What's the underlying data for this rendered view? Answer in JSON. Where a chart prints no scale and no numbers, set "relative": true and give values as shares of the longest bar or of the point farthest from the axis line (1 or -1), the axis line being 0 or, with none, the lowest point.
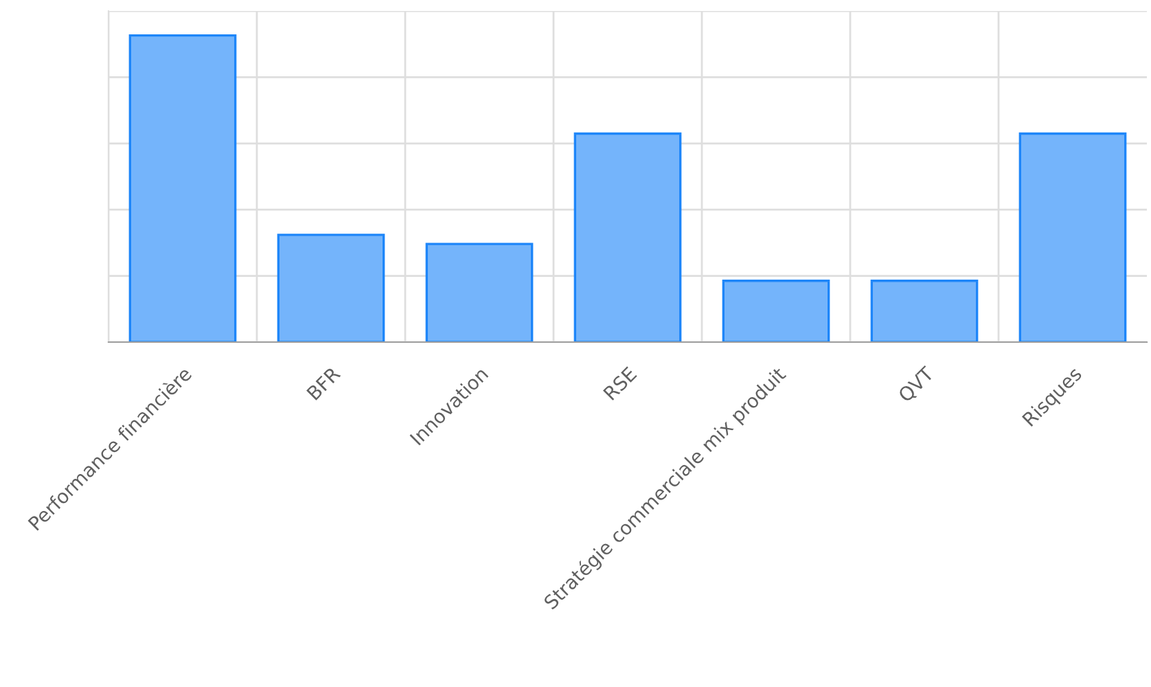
{
  "chart_data": {
    "type": "bar",
    "categories": [
      "Performance financière",
      "BFR",
      "Innovation",
      "RSE",
      "Stratégie commerciale mix produit",
      "QVT",
      "Risques"
    ],
    "values": [
      1,
      0.35,
      0.32,
      0.68,
      0.2,
      0.2,
      0.68
    ],
    "color": "#74b4fb",
    "relative": true,
    "grid": true
  }
}
